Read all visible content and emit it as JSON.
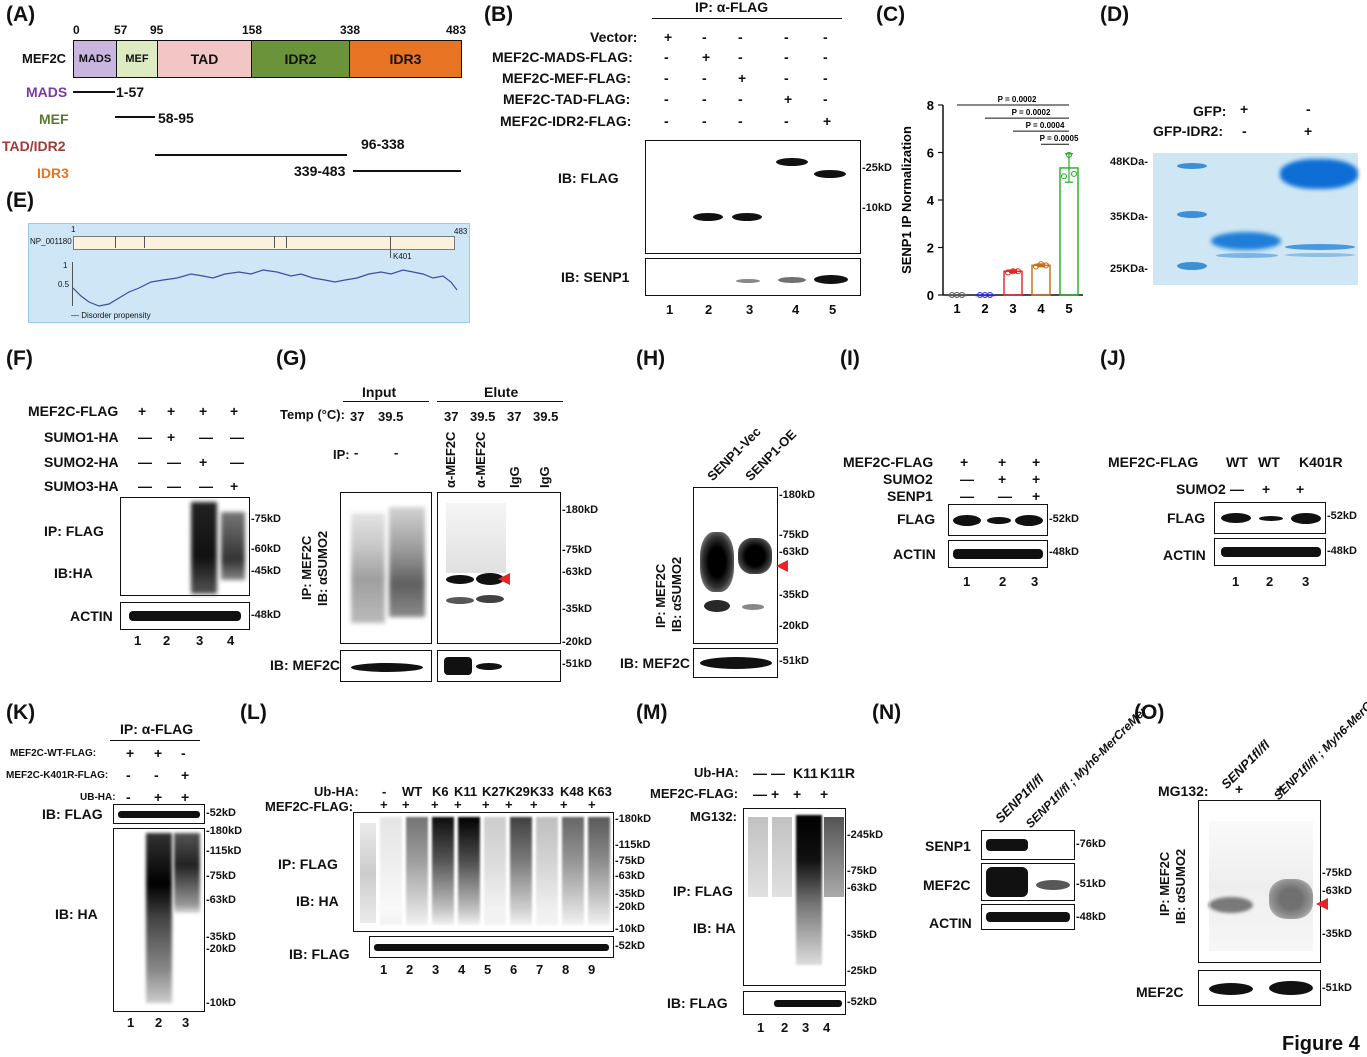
{
  "figure_title": "Figure 4",
  "panelA": {
    "label": "(A)",
    "protein": "MEF2C",
    "boundaries": [
      "0",
      "57",
      "95",
      "158",
      "338",
      "483"
    ],
    "domains": [
      {
        "name": "MADS",
        "color": "#c8b6de"
      },
      {
        "name": "MEF",
        "color": "#dcebc2"
      },
      {
        "name": "TAD",
        "color": "#f2c6c4"
      },
      {
        "name": "IDR2",
        "color": "#6b943a"
      },
      {
        "name": "IDR3",
        "color": "#e87322"
      }
    ],
    "fragments": [
      {
        "name": "MADS",
        "range": "1-57",
        "color": "#7a3aa0"
      },
      {
        "name": "MEF",
        "range": "58-95",
        "color": "#5c7a2e"
      },
      {
        "name": "TAD/IDR2",
        "range": "96-338",
        "color": "#a33a3a"
      },
      {
        "name": "IDR3",
        "range": "339-483",
        "color": "#e87322"
      }
    ]
  },
  "panelB": {
    "label": "(B)",
    "ip": "IP: α-FLAG",
    "rows": [
      {
        "name": "Vector:",
        "signs": [
          "+",
          "-",
          "-",
          "-",
          "-"
        ]
      },
      {
        "name": "MEF2C-MADS-FLAG:",
        "signs": [
          "-",
          "+",
          "-",
          "-",
          "-"
        ]
      },
      {
        "name": "MEF2C-MEF-FLAG:",
        "signs": [
          "-",
          "-",
          "+",
          "-",
          "-"
        ]
      },
      {
        "name": "MEF2C-TAD-FLAG:",
        "signs": [
          "-",
          "-",
          "-",
          "+",
          "-"
        ]
      },
      {
        "name": "MEF2C-IDR2-FLAG:",
        "signs": [
          "-",
          "-",
          "-",
          "-",
          "+"
        ]
      }
    ],
    "ib1": "IB: FLAG",
    "ib2": "IB: SENP1",
    "mw": [
      "25kD",
      "10kD"
    ],
    "lanes": [
      "1",
      "2",
      "3",
      "4",
      "5"
    ]
  },
  "panelC": {
    "label": "(C)",
    "chart_data": {
      "type": "bar",
      "categories": [
        "1",
        "2",
        "3",
        "4",
        "5"
      ],
      "values": [
        0.0,
        0.0,
        1.0,
        1.25,
        5.35
      ],
      "points": [
        [
          0,
          0,
          0
        ],
        [
          0,
          0,
          0
        ],
        [
          0.95,
          1.0,
          1.0
        ],
        [
          1.2,
          1.3,
          1.25
        ],
        [
          5.0,
          5.9,
          5.1
        ]
      ],
      "errors": [
        0,
        0,
        0.05,
        0.06,
        0.6
      ],
      "colors": [
        "#555555",
        "#2a2adb",
        "#e82020",
        "#c86a10",
        "#20b020"
      ],
      "ylabel": "SENP1 IP Normalization",
      "ylim": [
        0,
        8
      ],
      "yticks": [
        "0",
        "2",
        "4",
        "6",
        "8"
      ],
      "pvalues": [
        "P = 0.0002",
        "P = 0.0002",
        "P = 0.0004",
        "P = 0.0005"
      ]
    }
  },
  "panelD": {
    "label": "(D)",
    "rows": [
      {
        "name": "GFP:",
        "signs": [
          "+",
          "-"
        ]
      },
      {
        "name": "GFP-IDR2:",
        "signs": [
          "-",
          "+"
        ]
      }
    ],
    "mw": [
      "48KDa-",
      "35KDa-",
      "25KDa-"
    ]
  },
  "panelE": {
    "label": "(E)",
    "acc": "NP_001180",
    "start": "1",
    "end": "483",
    "site": "K401",
    "y1": "1",
    "y05": "0.5",
    "legend": "— Disorder propensity"
  },
  "panelF": {
    "label": "(F)",
    "rows": [
      {
        "name": "MEF2C-FLAG",
        "signs": [
          "+",
          "+",
          "+",
          "+"
        ]
      },
      {
        "name": "SUMO1-HA",
        "signs": [
          "—",
          "+",
          "—",
          "—"
        ]
      },
      {
        "name": "SUMO2-HA",
        "signs": [
          "—",
          "—",
          "+",
          "—"
        ]
      },
      {
        "name": "SUMO3-HA",
        "signs": [
          "—",
          "—",
          "—",
          "+"
        ]
      }
    ],
    "ip": "IP: FLAG",
    "ib": "IB:HA",
    "actin": "ACTIN",
    "mw": [
      "75kD",
      "60kD",
      "45kD",
      "48kD"
    ],
    "lanes": [
      "1",
      "2",
      "3",
      "4"
    ]
  },
  "panelG": {
    "label": "(G)",
    "input": "Input",
    "elute": "Elute",
    "temp_label": "Temp (°C):",
    "temps": [
      "37",
      "39.5",
      "37",
      "39.5",
      "37",
      "39.5"
    ],
    "ip_label": "IP:",
    "ip_vals": [
      "-",
      "-"
    ],
    "ab": [
      "α-MEF2C",
      "α-MEF2C",
      "IgG",
      "IgG"
    ],
    "side1": "IP: MEF2C",
    "side2": "IB: αSUMO2",
    "ib": "IB: MEF2C",
    "mw": [
      "180kD",
      "75kD",
      "63kD",
      "35kD",
      "20kD",
      "51kD"
    ]
  },
  "panelH": {
    "label": "(H)",
    "cols": [
      "SENP1-Vec",
      "SENP1-OE"
    ],
    "side1": "IP: MEF2C",
    "side2": "IB: αSUMO2",
    "ib": "IB: MEF2C",
    "mw": [
      "180kD",
      "75kD",
      "63kD",
      "35kD",
      "20kD",
      "51kD"
    ]
  },
  "panelI": {
    "label": "(I)",
    "rows": [
      {
        "name": "MEF2C-FLAG",
        "signs": [
          "+",
          "+",
          "+"
        ]
      },
      {
        "name": "SUMO2",
        "signs": [
          "—",
          "+",
          "+"
        ]
      },
      {
        "name": "SENP1",
        "signs": [
          "—",
          "—",
          "+"
        ]
      }
    ],
    "flag": "FLAG",
    "actin": "ACTIN",
    "mw": [
      "52kD",
      "48kD"
    ],
    "lanes": [
      "1",
      "2",
      "3"
    ]
  },
  "panelJ": {
    "label": "(J)",
    "row1": "MEF2C-FLAG",
    "row1vals": [
      "WT",
      "WT",
      "K401R"
    ],
    "row2": "SUMO2",
    "row2vals": [
      "—",
      "+",
      "+"
    ],
    "flag": "FLAG",
    "actin": "ACTIN",
    "mw": [
      "52kD",
      "48kD"
    ],
    "lanes": [
      "1",
      "2",
      "3"
    ]
  },
  "panelK": {
    "label": "(K)",
    "ip": "IP: α-FLAG",
    "rows": [
      {
        "name": "MEF2C-WT-FLAG:",
        "signs": [
          "+",
          "+",
          "-"
        ]
      },
      {
        "name": "MEF2C-K401R-FLAG:",
        "signs": [
          "-",
          "-",
          "+"
        ]
      },
      {
        "name": "UB-HA:",
        "signs": [
          "-",
          "+",
          "+"
        ]
      }
    ],
    "ib1": "IB: FLAG",
    "ib2": "IB: HA",
    "mw": [
      "52kD",
      "180kD",
      "115kD",
      "75kD",
      "63kD",
      "35kD",
      "20kD",
      "10kD"
    ],
    "lanes": [
      "1",
      "2",
      "3"
    ]
  },
  "panelL": {
    "label": "(L)",
    "ub_label": "Ub-HA:",
    "ub_vals": [
      "-",
      "WT",
      "K6",
      "K11",
      "K27",
      "K29",
      "K33",
      "K48",
      "K63"
    ],
    "mef_label": "MEF2C-FLAG:",
    "mef_vals": [
      "+",
      "+",
      "+",
      "+",
      "+",
      "+",
      "+",
      "+",
      "+"
    ],
    "ip": "IP: FLAG",
    "ib": "IB: HA",
    "ib2": "IB: FLAG",
    "mw": [
      "180kD",
      "115kD",
      "75kD",
      "63kD",
      "35kD",
      "20kD",
      "10kD",
      "52kD"
    ],
    "lanes": [
      "1",
      "2",
      "3",
      "4",
      "5",
      "6",
      "7",
      "8",
      "9"
    ]
  },
  "panelM": {
    "label": "(M)",
    "rows": [
      {
        "name": "Ub-HA:",
        "signs": [
          "—",
          "—",
          "K11",
          "K11R"
        ]
      },
      {
        "name": "MEF2C-FLAG:",
        "signs": [
          "—",
          "+",
          "+",
          "+"
        ]
      },
      {
        "name": "MG132:",
        "signs": [
          "—",
          "+",
          "+",
          "+"
        ]
      }
    ],
    "ip": "IP: FLAG",
    "ib": "IB: HA",
    "ib2": "IB: FLAG",
    "mw": [
      "245kD",
      "75kD",
      "63kD",
      "35kD",
      "25kD",
      "52kD"
    ],
    "lanes": [
      "1",
      "2",
      "3",
      "4"
    ]
  },
  "panelN": {
    "label": "(N)",
    "cols": [
      "SENP1fl/fl",
      "SENP1fl/fl ; Myh6-MerCreMer"
    ],
    "rows": [
      "SENP1",
      "MEF2C",
      "ACTIN"
    ],
    "mw": [
      "76kD",
      "51kD",
      "48kD"
    ]
  },
  "panelO": {
    "label": "(O)",
    "cols": [
      "SENP1fl/fl",
      "SENP1fl/fl ; Myh6-MerCreMer"
    ],
    "mg": "MG132:",
    "mgvals": [
      "+",
      "+"
    ],
    "side1": "IP: MEF2C",
    "side2": "IB: αSUMO2",
    "ib": "MEF2C",
    "mw": [
      "75kD",
      "63kD",
      "35kD",
      "51kD"
    ]
  }
}
